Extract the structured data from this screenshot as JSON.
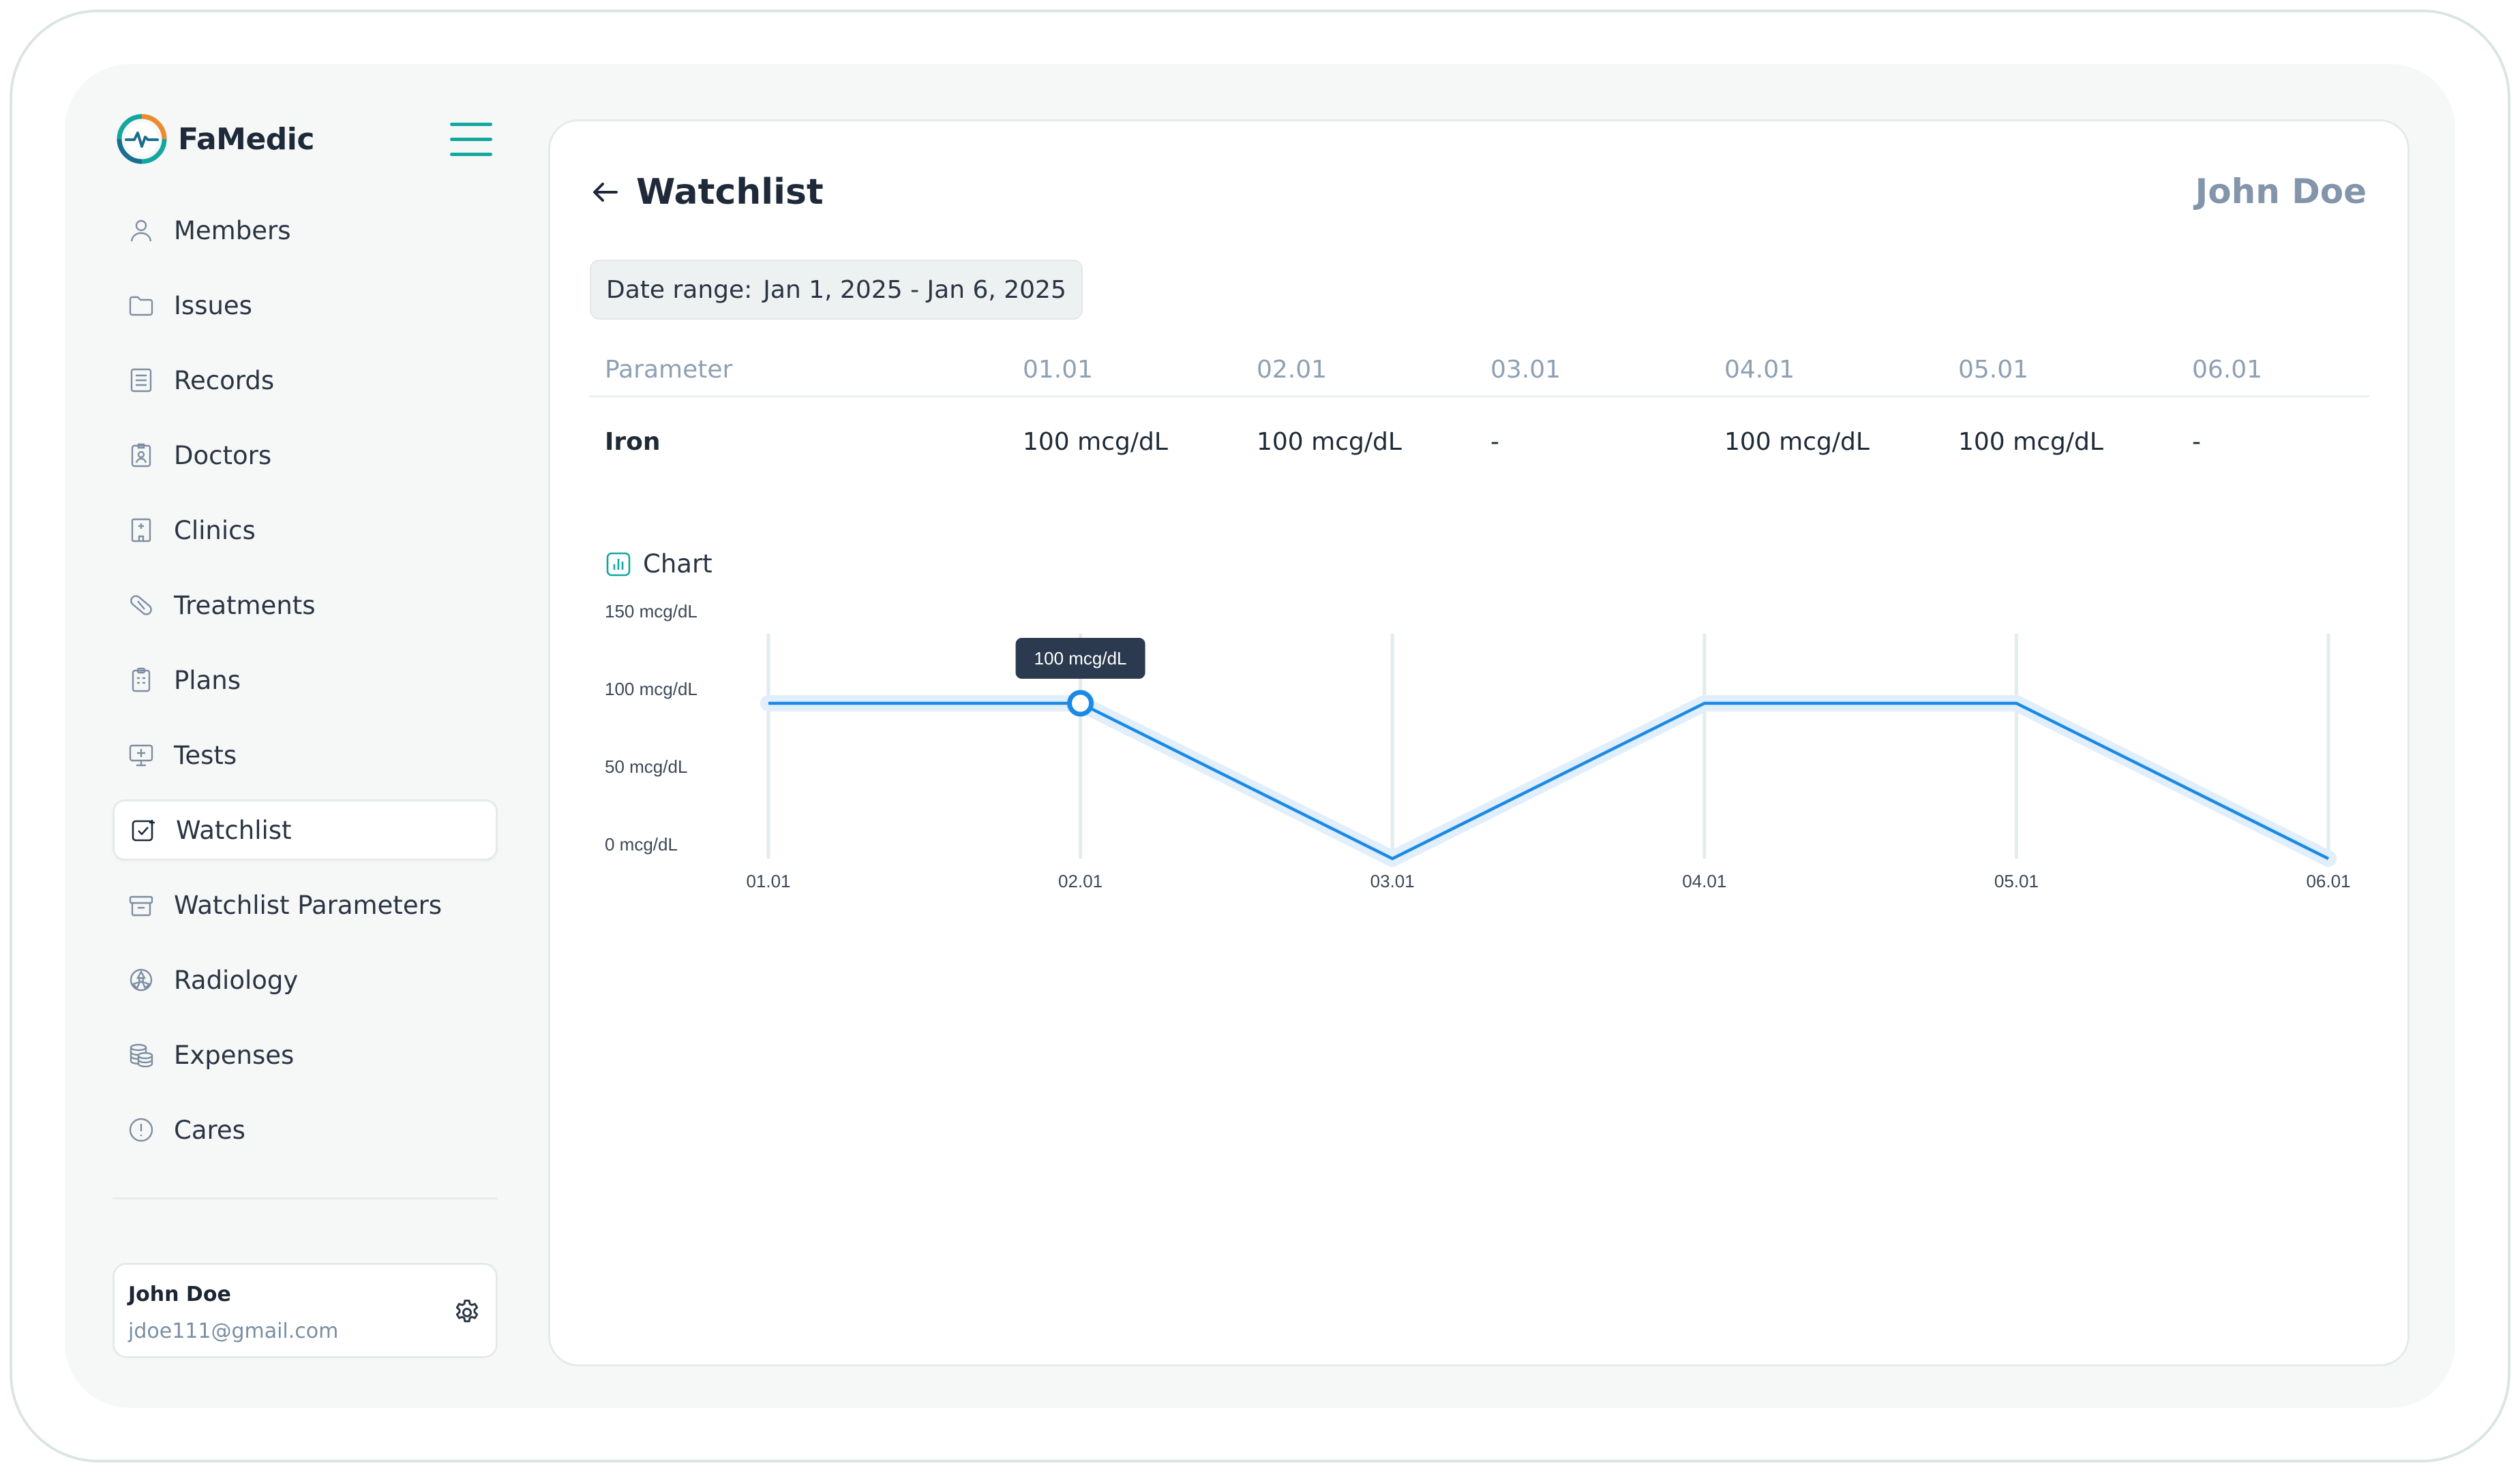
{
  "app": {
    "brand": "FaMedic"
  },
  "sidebar": {
    "items": [
      {
        "label": "Members",
        "icon": "user-icon"
      },
      {
        "label": "Issues",
        "icon": "folder-icon"
      },
      {
        "label": "Records",
        "icon": "document-list-icon"
      },
      {
        "label": "Doctors",
        "icon": "doctor-badge-icon"
      },
      {
        "label": "Clinics",
        "icon": "building-icon"
      },
      {
        "label": "Treatments",
        "icon": "pill-icon"
      },
      {
        "label": "Plans",
        "icon": "clipboard-icon"
      },
      {
        "label": "Tests",
        "icon": "monitor-plus-icon"
      },
      {
        "label": "Watchlist",
        "icon": "watchlist-icon",
        "active": true
      },
      {
        "label": "Watchlist Parameters",
        "icon": "archive-icon"
      },
      {
        "label": "Radiology",
        "icon": "radiology-icon"
      },
      {
        "label": "Expenses",
        "icon": "coins-icon"
      },
      {
        "label": "Cares",
        "icon": "alert-circle-icon"
      }
    ],
    "user": {
      "name": "John Doe",
      "email": "jdoe111@gmail.com"
    }
  },
  "main": {
    "title": "Watchlist",
    "patient": "John Doe",
    "date_range": {
      "label": "Date range:",
      "value": "Jan 1, 2025 - Jan 6, 2025"
    },
    "table": {
      "headers": [
        "Parameter",
        "01.01",
        "02.01",
        "03.01",
        "04.01",
        "05.01",
        "06.01"
      ],
      "rows": [
        [
          "Iron",
          "100 mcg/dL",
          "100 mcg/dL",
          "-",
          "100 mcg/dL",
          "100 mcg/dL",
          "-"
        ]
      ]
    },
    "chart_label": "Chart"
  },
  "colors": {
    "accent": "#13a7a0",
    "line": "#1a8ae5",
    "tooltip_bg": "#2b3a4e",
    "muted": "#8395ab"
  },
  "chart_data": {
    "type": "line",
    "x": [
      "01.01",
      "02.01",
      "03.01",
      "04.01",
      "05.01",
      "06.01"
    ],
    "series": [
      {
        "values": [
          100,
          100,
          0,
          100,
          100,
          0
        ]
      }
    ],
    "y_ticks": [
      "0 mcg/dL",
      "50 mcg/dL",
      "100 mcg/dL",
      "150 mcg/dL"
    ],
    "ylim": [
      0,
      150
    ],
    "grid": "vertical",
    "tooltip": {
      "x": "02.01",
      "text": "100 mcg/dL"
    }
  }
}
